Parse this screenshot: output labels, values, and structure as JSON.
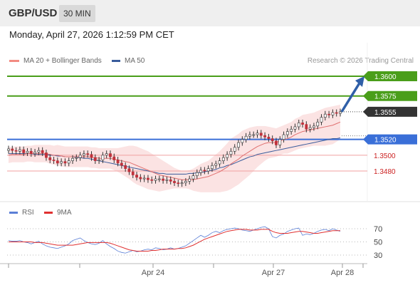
{
  "header": {
    "pair": "GBP/USD",
    "timeframe": "30 MIN"
  },
  "datetime": "Monday, April 27, 2026 1:12:59 PM CET",
  "legend_top": [
    {
      "label": "MA 20 + Bollinger Bands",
      "color": "#f28b82"
    },
    {
      "label": "MA 50",
      "color": "#3a5c9c"
    }
  ],
  "legend_bottom": [
    {
      "label": "RSI",
      "color": "#5b7fd6"
    },
    {
      "label": "9MA",
      "color": "#e03030"
    }
  ],
  "copyright": "Research © 2026 Trading Central",
  "colors": {
    "target": "#4a9e1a",
    "support": "#3a6fd8",
    "resistance_red": "#d9534f",
    "current": "#333333",
    "candle": "#c0303a",
    "arrow": "#2f5fa8"
  },
  "chart_data": {
    "type": "candlestick",
    "price_axis": {
      "min": 1.344,
      "max": 1.362
    },
    "levels": [
      {
        "label": "1.3600",
        "value": 1.36,
        "kind": "target"
      },
      {
        "label": "1.3575",
        "value": 1.3575,
        "kind": "target"
      },
      {
        "label": "1.3555",
        "value": 1.3555,
        "kind": "current"
      },
      {
        "label": "1.3520",
        "value": 1.352,
        "kind": "pivot"
      },
      {
        "label": "1.3500",
        "value": 1.35,
        "kind": "support"
      },
      {
        "label": "1.3480",
        "value": 1.348,
        "kind": "support"
      }
    ],
    "x_labels": [
      "Apr 24",
      "Apr 27",
      "Apr 28"
    ],
    "rsi_axis": {
      "ticks": [
        70,
        50,
        30
      ],
      "min": 10,
      "max": 90
    },
    "close": [
      1.3508,
      1.3506,
      1.3505,
      1.3507,
      1.3503,
      1.3505,
      1.3502,
      1.3504,
      1.3506,
      1.3503,
      1.3497,
      1.3494,
      1.3493,
      1.349,
      1.3492,
      1.349,
      1.3493,
      1.3496,
      1.3497,
      1.35,
      1.3502,
      1.3501,
      1.3497,
      1.3493,
      1.3494,
      1.35,
      1.3502,
      1.3498,
      1.3494,
      1.349,
      1.3487,
      1.3483,
      1.3479,
      1.3475,
      1.3472,
      1.347,
      1.3471,
      1.3469,
      1.3468,
      1.347,
      1.347,
      1.3468,
      1.3469,
      1.3467,
      1.3465,
      1.3464,
      1.3465,
      1.3467,
      1.347,
      1.3474,
      1.3478,
      1.3481,
      1.348,
      1.3483,
      1.3487,
      1.3489,
      1.3493,
      1.3497,
      1.3501,
      1.3505,
      1.351,
      1.3516,
      1.352,
      1.3524,
      1.3526,
      1.3526,
      1.3528,
      1.3525,
      1.3523,
      1.3521,
      1.3518,
      1.3513,
      1.352,
      1.3526,
      1.353,
      1.3533,
      1.3536,
      1.3541,
      1.3539,
      1.3533,
      1.3535,
      1.3537,
      1.3542,
      1.3548,
      1.3552,
      1.3551,
      1.3554,
      1.3553,
      1.3555
    ],
    "ma20": [
      1.35,
      1.3501,
      1.3501,
      1.3501,
      1.3501,
      1.3502,
      1.3502,
      1.3502,
      1.3502,
      1.3502,
      1.3502,
      1.3501,
      1.35,
      1.35,
      1.3499,
      1.3498,
      1.3498,
      1.3498,
      1.3498,
      1.3498,
      1.3498,
      1.3498,
      1.3497,
      1.3497,
      1.3496,
      1.3496,
      1.3496,
      1.3496,
      1.3495,
      1.3494,
      1.3493,
      1.3492,
      1.3491,
      1.3489,
      1.3487,
      1.3485,
      1.3483,
      1.3481,
      1.3479,
      1.3477,
      1.3475,
      1.3474,
      1.3473,
      1.3472,
      1.3471,
      1.347,
      1.3469,
      1.3469,
      1.3469,
      1.3469,
      1.347,
      1.3471,
      1.3472,
      1.3473,
      1.3475,
      1.3477,
      1.3479,
      1.3482,
      1.3485,
      1.3489,
      1.3492,
      1.3495,
      1.3499,
      1.3502,
      1.3505,
      1.3508,
      1.3511,
      1.3513,
      1.3515,
      1.3516,
      1.3516,
      1.3516,
      1.3518,
      1.352,
      1.3521,
      1.3523,
      1.3526,
      1.3528,
      1.353,
      1.3531,
      1.3532,
      1.3533,
      1.3534,
      1.3535,
      1.3536,
      1.3537,
      1.3538,
      1.354,
      1.3542
    ],
    "ma50": [
      1.3502,
      1.3502,
      1.3502,
      1.3502,
      1.3502,
      1.3502,
      1.3502,
      1.3501,
      1.3501,
      1.3501,
      1.3501,
      1.35,
      1.35,
      1.3499,
      1.3499,
      1.3498,
      1.3498,
      1.3498,
      1.3497,
      1.3497,
      1.3496,
      1.3496,
      1.3495,
      1.3494,
      1.3493,
      1.3492,
      1.3491,
      1.349,
      1.3489,
      1.3488,
      1.3487,
      1.3486,
      1.3485,
      1.3484,
      1.3483,
      1.3482,
      1.3481,
      1.348,
      1.3479,
      1.3478,
      1.3477,
      1.3477,
      1.3476,
      1.3476,
      1.3476,
      1.3476,
      1.3476,
      1.3476,
      1.3477,
      1.3477,
      1.3478,
      1.3478,
      1.3479,
      1.348,
      1.3481,
      1.3482,
      1.3484,
      1.3485,
      1.3487,
      1.3488,
      1.349,
      1.3492,
      1.3494,
      1.3496,
      1.3498,
      1.3499,
      1.3501,
      1.3502,
      1.3503,
      1.3504,
      1.3505,
      1.3506,
      1.3507,
      1.3508,
      1.3509,
      1.351,
      1.3511,
      1.3512,
      1.3513,
      1.3514,
      1.3515,
      1.3516,
      1.3517,
      1.3518,
      1.3519,
      1.352,
      1.3521,
      1.3521,
      1.3522
    ],
    "bb_width": [
      0.001,
      0.001,
      0.001,
      0.001,
      0.001,
      0.001,
      0.001,
      0.0011,
      0.0011,
      0.0011,
      0.0011,
      0.0012,
      0.0012,
      0.0013,
      0.0013,
      0.0013,
      0.0013,
      0.0013,
      0.0013,
      0.0013,
      0.0013,
      0.0013,
      0.0013,
      0.0013,
      0.0013,
      0.0013,
      0.0013,
      0.0013,
      0.0014,
      0.0015,
      0.0017,
      0.0019,
      0.0021,
      0.0023,
      0.0024,
      0.0024,
      0.0024,
      0.0024,
      0.0023,
      0.0022,
      0.0021,
      0.0019,
      0.0017,
      0.0015,
      0.0013,
      0.0012,
      0.0011,
      0.0011,
      0.0012,
      0.0014,
      0.0016,
      0.0018,
      0.0019,
      0.002,
      0.0022,
      0.0024,
      0.0026,
      0.0028,
      0.003,
      0.0032,
      0.0032,
      0.0032,
      0.0032,
      0.0031,
      0.003,
      0.0028,
      0.0026,
      0.0024,
      0.0022,
      0.002,
      0.0019,
      0.0018,
      0.0018,
      0.0018,
      0.0019,
      0.0019,
      0.002,
      0.002,
      0.0021,
      0.0021,
      0.0021,
      0.0021,
      0.0022,
      0.0023,
      0.0024,
      0.0024,
      0.0024,
      0.0023,
      0.0022
    ],
    "rsi": [
      52,
      51,
      51,
      52,
      50,
      49,
      47,
      49,
      51,
      47,
      44,
      42,
      41,
      40,
      42,
      44,
      47,
      52,
      54,
      56,
      52,
      49,
      47,
      46,
      48,
      52,
      47,
      43,
      40,
      36,
      34,
      33,
      35,
      37,
      35,
      36,
      38,
      39,
      38,
      41,
      40,
      38,
      39,
      41,
      39,
      40,
      42,
      44,
      48,
      52,
      56,
      60,
      57,
      60,
      64,
      66,
      64,
      67,
      69,
      70,
      71,
      70,
      68,
      67,
      66,
      68,
      70,
      72,
      73,
      70,
      58,
      56,
      60,
      62,
      66,
      68,
      70,
      71,
      60,
      62,
      61,
      63,
      66,
      68,
      69,
      67,
      70,
      68,
      66
    ],
    "rsi_ma": [
      50,
      50,
      50,
      50,
      50,
      50,
      50,
      49,
      49,
      49,
      48,
      47,
      46,
      45,
      45,
      45,
      45,
      45,
      46,
      47,
      48,
      49,
      49,
      49,
      49,
      49,
      49,
      48,
      46,
      44,
      42,
      40,
      38,
      37,
      36,
      36,
      36,
      36,
      37,
      37,
      38,
      39,
      39,
      39,
      39,
      40,
      40,
      41,
      43,
      45,
      48,
      51,
      54,
      56,
      58,
      60,
      62,
      64,
      66,
      67,
      68,
      69,
      69,
      69,
      68,
      68,
      68,
      69,
      69,
      69,
      66,
      64,
      63,
      63,
      63,
      64,
      65,
      66,
      66,
      65,
      64,
      63,
      63,
      64,
      65,
      66,
      67,
      67,
      67
    ]
  }
}
